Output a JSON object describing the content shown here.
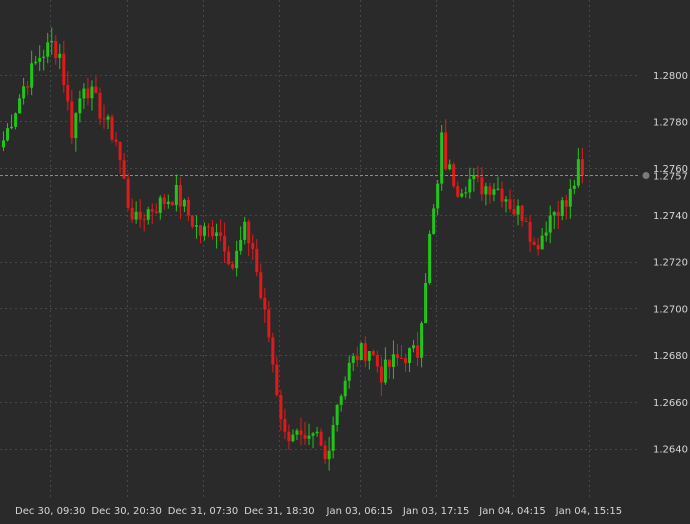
{
  "chart_data": {
    "type": "candlestick",
    "instrument": "",
    "timeframe": "",
    "grid": true,
    "current_price": 1.2757,
    "current_price_label": "1.2757",
    "y_axis": {
      "position": "right",
      "ylim": [
        1.2618,
        1.2832
      ],
      "ticks": [
        {
          "value": 1.28,
          "label": "1.2800"
        },
        {
          "value": 1.278,
          "label": "1.2780"
        },
        {
          "value": 1.276,
          "label": "1.2760"
        },
        {
          "value": 1.274,
          "label": "1.2740"
        },
        {
          "value": 1.272,
          "label": "1.2720"
        },
        {
          "value": 1.27,
          "label": "1.2700"
        },
        {
          "value": 1.268,
          "label": "1.2680"
        },
        {
          "value": 1.266,
          "label": "1.2660"
        },
        {
          "value": 1.264,
          "label": "1.2640"
        }
      ]
    },
    "x_axis": {
      "n_bars": 145,
      "ticks": [
        {
          "bar": 12,
          "label": "Dec 30, 09:30"
        },
        {
          "bar": 31,
          "label": "Dec 30, 20:30"
        },
        {
          "bar": 50,
          "label": "Dec 31, 07:30"
        },
        {
          "bar": 69,
          "label": "Dec 31, 18:30"
        },
        {
          "bar": 89,
          "label": "Jan 03, 06:15"
        },
        {
          "bar": 108,
          "label": "Jan 03, 17:15"
        },
        {
          "bar": 127,
          "label": "Jan 04, 04:15"
        },
        {
          "bar": 146,
          "label": "Jan 04, 15:15"
        }
      ]
    },
    "colors": {
      "background": "#2a2a2a",
      "grid": "#474747",
      "up": "#22c41a",
      "down": "#e01a1a",
      "axis_text": "#d6d6d6",
      "current_price_line": "#8a8a8a"
    },
    "price_path": [
      [
        0,
        1.2772
      ],
      [
        5,
        1.2795
      ],
      [
        9,
        1.2808
      ],
      [
        12,
        1.2813
      ],
      [
        14,
        1.2809
      ],
      [
        17,
        1.2776
      ],
      [
        20,
        1.2797
      ],
      [
        23,
        1.2788
      ],
      [
        26,
        1.2778
      ],
      [
        28,
        1.2772
      ],
      [
        31,
        1.2745
      ],
      [
        33,
        1.2737
      ],
      [
        36,
        1.2742
      ],
      [
        40,
        1.2746
      ],
      [
        43,
        1.2749
      ],
      [
        46,
        1.274
      ],
      [
        49,
        1.2732
      ],
      [
        53,
        1.2735
      ],
      [
        55,
        1.2728
      ],
      [
        57,
        1.2718
      ],
      [
        60,
        1.2733
      ],
      [
        62,
        1.2726
      ],
      [
        64,
        1.2705
      ],
      [
        66,
        1.2688
      ],
      [
        68,
        1.2665
      ],
      [
        70,
        1.2645
      ],
      [
        72,
        1.2648
      ],
      [
        75,
        1.264
      ],
      [
        78,
        1.2645
      ],
      [
        80,
        1.2635
      ],
      [
        83,
        1.266
      ],
      [
        86,
        1.2675
      ],
      [
        88,
        1.268
      ],
      [
        91,
        1.2683
      ],
      [
        94,
        1.2672
      ],
      [
        97,
        1.2677
      ],
      [
        100,
        1.268
      ],
      [
        103,
        1.2681
      ],
      [
        104,
        1.2698
      ],
      [
        106,
        1.273
      ],
      [
        108,
        1.2752
      ],
      [
        109,
        1.2772
      ],
      [
        110,
        1.2762
      ],
      [
        113,
        1.2752
      ],
      [
        116,
        1.2755
      ],
      [
        119,
        1.2752
      ],
      [
        122,
        1.2753
      ],
      [
        125,
        1.2748
      ],
      [
        127,
        1.2742
      ],
      [
        130,
        1.274
      ],
      [
        132,
        1.2726
      ],
      [
        134,
        1.2732
      ],
      [
        136,
        1.274
      ],
      [
        138,
        1.2744
      ],
      [
        140,
        1.2744
      ],
      [
        142,
        1.2754
      ],
      [
        143,
        1.276
      ],
      [
        144,
        1.2757
      ]
    ],
    "seed": 7
  }
}
